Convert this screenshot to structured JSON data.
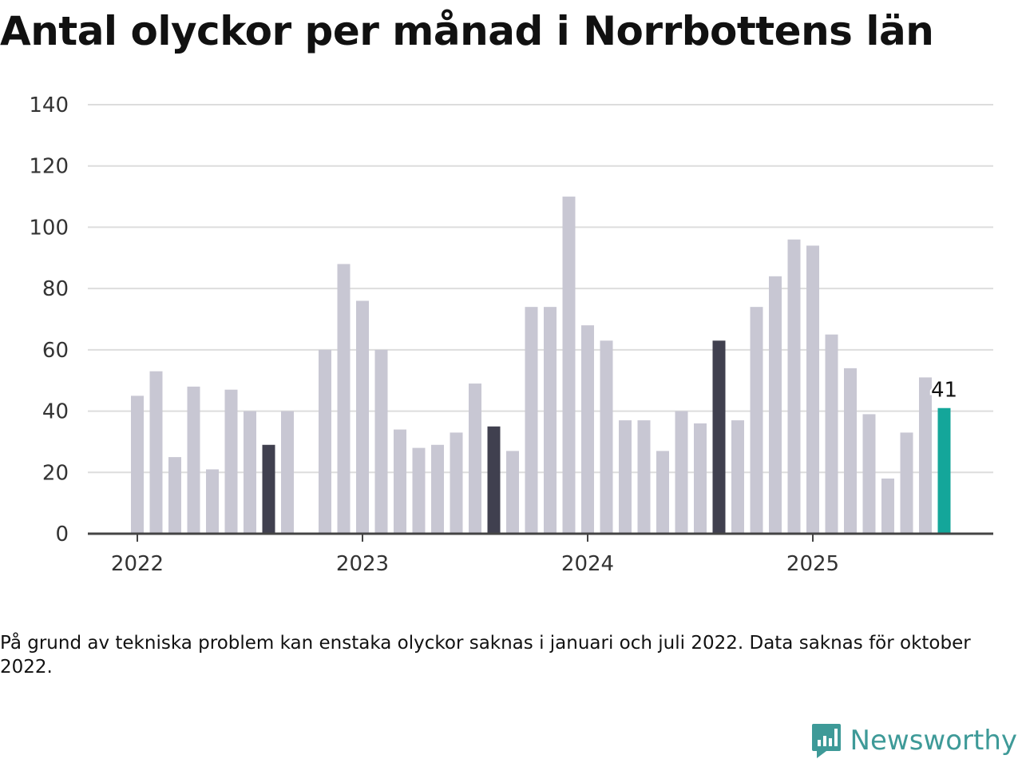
{
  "title": "Antal olyckor per månad i Norrbottens län",
  "note": "På grund av tekniska problem kan enstaka olyckor saknas i januari och juli 2022. Data saknas för oktober 2022.",
  "brand": {
    "name": "Newsworthy",
    "icon": "newsworthy-chart-bubble-icon"
  },
  "colors": {
    "default": "#c8c7d3",
    "highlight": "#40404f",
    "latest": "#14a69a",
    "grid": "#dddddd",
    "axis": "#444444"
  },
  "chart_data": {
    "type": "bar",
    "title": "Antal olyckor per månad i Norrbottens län",
    "xlabel": "",
    "ylabel": "",
    "ylim": [
      0,
      140
    ],
    "y_ticks": [
      0,
      20,
      40,
      60,
      80,
      100,
      120,
      140
    ],
    "x_ticks": [
      "2022",
      "2023",
      "2024",
      "2025"
    ],
    "grid": true,
    "x": [
      "2022-01",
      "2022-02",
      "2022-03",
      "2022-04",
      "2022-05",
      "2022-06",
      "2022-07",
      "2022-08",
      "2022-09",
      "2022-10",
      "2022-11",
      "2022-12",
      "2023-01",
      "2023-02",
      "2023-03",
      "2023-04",
      "2023-05",
      "2023-06",
      "2023-07",
      "2023-08",
      "2023-09",
      "2023-10",
      "2023-11",
      "2023-12",
      "2024-01",
      "2024-02",
      "2024-03",
      "2024-04",
      "2024-05",
      "2024-06",
      "2024-07",
      "2024-08",
      "2024-09",
      "2024-10",
      "2024-11",
      "2024-12",
      "2025-01",
      "2025-02",
      "2025-03",
      "2025-04",
      "2025-05",
      "2025-06",
      "2025-07",
      "2025-08"
    ],
    "values": [
      45,
      53,
      25,
      48,
      21,
      47,
      40,
      29,
      40,
      null,
      60,
      88,
      76,
      60,
      34,
      28,
      29,
      33,
      49,
      35,
      27,
      74,
      74,
      110,
      68,
      63,
      37,
      37,
      27,
      40,
      36,
      63,
      37,
      74,
      84,
      96,
      94,
      65,
      54,
      39,
      18,
      33,
      51,
      41
    ],
    "highlight_months": [
      "2022-08",
      "2023-08",
      "2024-08"
    ],
    "latest": {
      "month": "2025-08",
      "value": 41,
      "label": "41"
    }
  }
}
